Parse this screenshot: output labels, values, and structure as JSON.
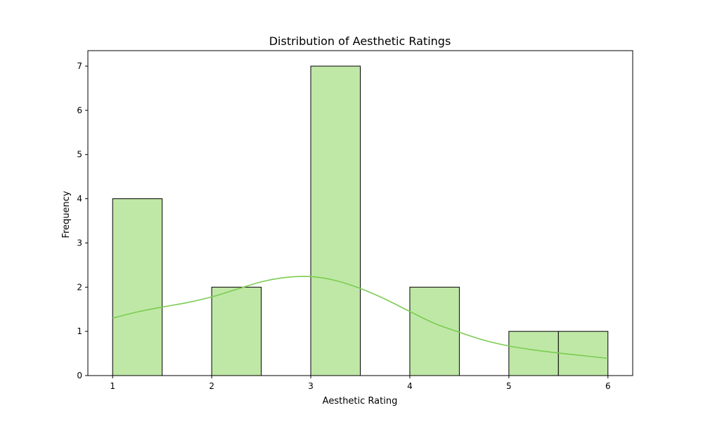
{
  "chart_data": {
    "type": "bar",
    "subtype": "histogram",
    "title": "Distribution of Aesthetic Ratings",
    "xlabel": "Aesthetic Rating",
    "ylabel": "Frequency",
    "xlim": [
      0.75,
      6.25
    ],
    "ylim": [
      0,
      7.35
    ],
    "x_ticks": [
      1,
      2,
      3,
      4,
      5,
      6
    ],
    "y_ticks": [
      0,
      1,
      2,
      3,
      4,
      5,
      6,
      7
    ],
    "bin_edges": [
      1.0,
      1.5,
      2.0,
      2.5,
      3.0,
      3.5,
      4.0,
      4.5,
      5.0,
      5.5,
      6.0
    ],
    "counts": [
      4,
      0,
      2,
      0,
      7,
      0,
      2,
      0,
      1,
      1
    ],
    "kde": {
      "x": [
        1.0,
        1.25,
        1.5,
        1.75,
        2.0,
        2.25,
        2.5,
        2.75,
        3.0,
        3.25,
        3.5,
        3.75,
        4.0,
        4.25,
        4.5,
        4.75,
        5.0,
        5.25,
        5.5,
        5.75,
        6.0
      ],
      "y": [
        1.3,
        1.44,
        1.55,
        1.65,
        1.78,
        1.95,
        2.12,
        2.22,
        2.24,
        2.15,
        1.97,
        1.73,
        1.45,
        1.18,
        0.98,
        0.8,
        0.67,
        0.58,
        0.51,
        0.45,
        0.39
      ]
    },
    "colors": {
      "bar_fill": "#bfe8a6",
      "bar_edge": "#000000",
      "kde_line": "#7bcc52"
    },
    "grid": false,
    "legend": "none"
  }
}
